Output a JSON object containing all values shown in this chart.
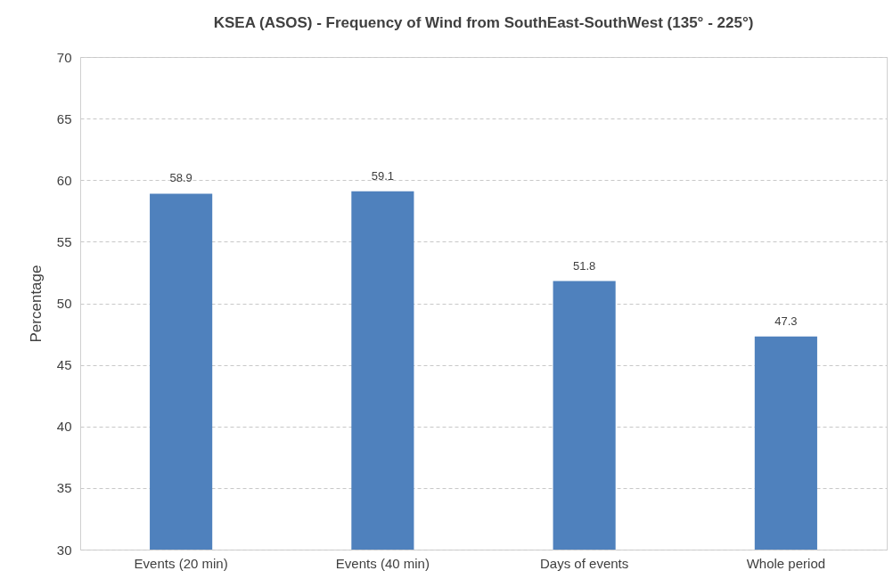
{
  "chart_data": {
    "type": "bar",
    "title": "KSEA (ASOS) - Frequency of Wind  from SouthEast-SouthWest  (135° - 225°)",
    "ylabel": "Percentage",
    "categories": [
      "Events (20 min)",
      "Events (40 min)",
      "Days of events",
      "Whole period"
    ],
    "values": [
      58.9,
      59.1,
      51.8,
      47.3
    ],
    "color": "#4f81bd",
    "data_labels": true,
    "ylim": [
      30,
      70
    ],
    "yticks": [
      30,
      35,
      40,
      45,
      50,
      55,
      60,
      65,
      70
    ],
    "grid": "y"
  }
}
